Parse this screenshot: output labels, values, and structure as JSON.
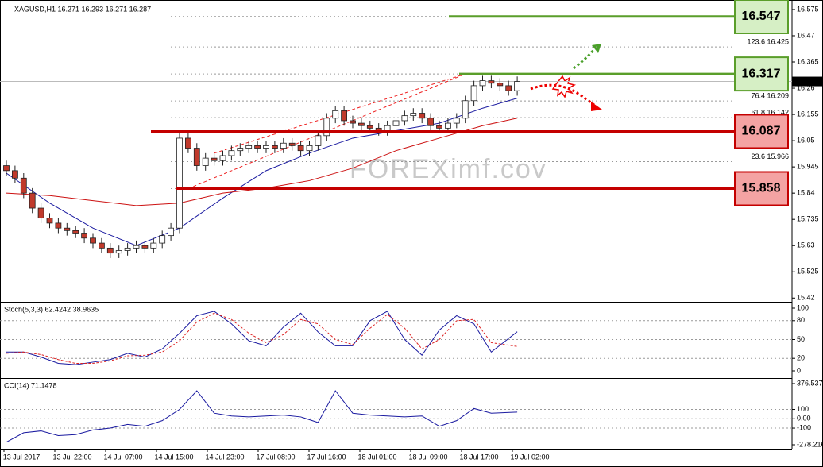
{
  "chart_data": {
    "type": "candlestick",
    "header": "XAGUSD,H1  16.271 16.293 16.271 16.287",
    "watermark": "FOREXimf.cov",
    "ylim": [
      15.405,
      16.613
    ],
    "yticks": [
      16.575,
      16.47,
      16.365,
      16.26,
      16.155,
      16.05,
      15.945,
      15.84,
      15.735,
      15.63,
      15.525,
      15.42
    ],
    "current_price": 16.287,
    "open": [
      15.95,
      15.93,
      15.9,
      15.84,
      15.78,
      15.74,
      15.72,
      15.7,
      15.69,
      15.68,
      15.66,
      15.64,
      15.62,
      15.6,
      15.61,
      15.62,
      15.63,
      15.62,
      15.64,
      15.67,
      15.7,
      16.06,
      16.02,
      15.95,
      15.98,
      15.97,
      15.99,
      16.01,
      16.02,
      16.03,
      16.02,
      16.03,
      16.02,
      16.04,
      16.03,
      16.01,
      16.03,
      16.07,
      16.14,
      16.17,
      16.13,
      16.12,
      16.11,
      16.1,
      16.09,
      16.11,
      16.13,
      16.15,
      16.16,
      16.14,
      16.11,
      16.1,
      16.12,
      16.14,
      16.21,
      16.27,
      16.29,
      16.28,
      16.27,
      16.25
    ],
    "high": [
      15.97,
      15.95,
      15.92,
      15.86,
      15.8,
      15.76,
      15.74,
      15.72,
      15.71,
      15.7,
      15.68,
      15.66,
      15.64,
      15.63,
      15.64,
      15.65,
      15.65,
      15.66,
      15.69,
      15.72,
      16.08,
      16.08,
      16.04,
      16,
      16,
      16.01,
      16.03,
      16.04,
      16.05,
      16.05,
      16.05,
      16.05,
      16.06,
      16.06,
      16.05,
      16.05,
      16.09,
      16.16,
      16.19,
      16.19,
      16.15,
      16.14,
      16.13,
      16.12,
      16.13,
      16.15,
      16.17,
      16.18,
      16.18,
      16.16,
      16.13,
      16.14,
      16.16,
      16.23,
      16.29,
      16.31,
      16.31,
      16.3,
      16.29,
      16.307
    ],
    "low": [
      15.91,
      15.88,
      15.82,
      15.76,
      15.72,
      15.7,
      15.68,
      15.67,
      15.66,
      15.64,
      15.62,
      15.6,
      15.58,
      15.58,
      15.59,
      15.6,
      15.6,
      15.6,
      15.62,
      15.65,
      15.68,
      16,
      15.93,
      15.93,
      15.95,
      15.95,
      15.97,
      15.99,
      16,
      16,
      16,
      16,
      16,
      16.01,
      15.99,
      15.99,
      16.01,
      16.05,
      16.12,
      16.11,
      16.1,
      16.09,
      16.08,
      16.07,
      16.07,
      16.09,
      16.11,
      16.13,
      16.12,
      16.09,
      16.08,
      16.08,
      16.1,
      16.12,
      16.19,
      16.25,
      16.26,
      16.25,
      16.23,
      16.23
    ],
    "close": [
      15.93,
      15.9,
      15.84,
      15.78,
      15.74,
      15.72,
      15.7,
      15.69,
      15.68,
      15.66,
      15.64,
      15.62,
      15.6,
      15.61,
      15.62,
      15.63,
      15.62,
      15.64,
      15.67,
      15.7,
      16.06,
      16.02,
      15.95,
      15.98,
      15.97,
      15.99,
      16.01,
      16.02,
      16.03,
      16.02,
      16.03,
      16.02,
      16.04,
      16.03,
      16.01,
      16.03,
      16.07,
      16.14,
      16.17,
      16.13,
      16.12,
      16.11,
      16.1,
      16.09,
      16.11,
      16.13,
      16.15,
      16.16,
      16.14,
      16.11,
      16.1,
      16.12,
      16.14,
      16.21,
      16.27,
      16.29,
      16.28,
      16.27,
      16.25,
      16.287
    ],
    "moving_averages": [
      {
        "color": "#1a1aa0",
        "x": [
          0,
          5,
          10,
          15,
          20,
          25,
          30,
          35,
          40,
          45,
          50,
          55,
          59
        ],
        "values": [
          15.92,
          15.8,
          15.7,
          15.63,
          15.7,
          15.82,
          15.93,
          16,
          16.06,
          16.09,
          16.12,
          16.18,
          16.22
        ]
      },
      {
        "color": "#cc1111",
        "x": [
          0,
          5,
          10,
          15,
          20,
          25,
          30,
          35,
          40,
          45,
          50,
          55,
          59
        ],
        "values": [
          15.84,
          15.83,
          15.81,
          15.79,
          15.8,
          15.84,
          15.86,
          15.89,
          15.94,
          16.01,
          16.06,
          16.11,
          16.14
        ]
      }
    ],
    "channel": [
      {
        "x": [
          21,
          53
        ],
        "values": [
          15.858,
          16.317
        ]
      },
      {
        "x": [
          24,
          53
        ],
        "values": [
          16.0,
          16.317
        ]
      }
    ],
    "fib_levels": [
      16.547,
      {
        "value": 16.425,
        "label": "123.6  16.425"
      },
      16.317,
      {
        "value": 16.209,
        "label": "76.4  16.209"
      },
      {
        "value": 16.142,
        "label": "61.8  16.142"
      },
      {
        "value": 15.966,
        "label": "23.6  15.966"
      },
      15.858
    ],
    "levels": [
      {
        "value": 16.547,
        "color": "#5a9e2a",
        "fill": "#d6efc5"
      },
      {
        "value": 16.317,
        "color": "#5a9e2a",
        "fill": "#d6efc5"
      },
      {
        "value": 16.087,
        "color": "#c40000",
        "fill": "#f4a3a3"
      },
      {
        "value": 15.858,
        "color": "#c40000",
        "fill": "#f4a3a3"
      }
    ],
    "time_labels": [
      "13 Jul 2017",
      "13 Jul 22:00",
      "14 Jul 07:00",
      "14 Jul 15:00",
      "14 Jul 23:00",
      "17 Jul 08:00",
      "17 Jul 16:00",
      "18 Jul 01:00",
      "18 Jul 09:00",
      "18 Jul 17:00",
      "19 Jul 02:00"
    ],
    "stoch": {
      "title": "Stoch(5,3,3) 62.4242 38.9635",
      "ylim": [
        0,
        100
      ],
      "yticks": [
        100,
        80,
        50,
        20,
        0
      ],
      "levels": [
        80,
        50,
        20
      ],
      "x": [
        0,
        2,
        4,
        6,
        8,
        10,
        12,
        14,
        16,
        18,
        20,
        22,
        24,
        26,
        28,
        30,
        32,
        34,
        36,
        38,
        40,
        42,
        44,
        46,
        48,
        50,
        52,
        54,
        56,
        59
      ],
      "series": [
        {
          "color": "#1a1aa0",
          "values": [
            30,
            30,
            22,
            12,
            10,
            14,
            18,
            28,
            22,
            35,
            60,
            88,
            95,
            75,
            48,
            40,
            70,
            92,
            62,
            40,
            40,
            80,
            95,
            50,
            25,
            65,
            88,
            75,
            30,
            62.4242
          ]
        },
        {
          "color": "#dd2222",
          "values": [
            28,
            30,
            26,
            18,
            12,
            12,
            16,
            24,
            25,
            30,
            48,
            78,
            92,
            82,
            60,
            45,
            58,
            82,
            75,
            50,
            42,
            68,
            90,
            68,
            35,
            50,
            80,
            82,
            45,
            38.9635
          ]
        }
      ]
    },
    "cci": {
      "title": "CCI(14) 71.1478",
      "ylim": [
        -278.216,
        376.5373
      ],
      "yticks": [
        376.5373,
        100,
        {
          "value": 0,
          "label": "0.00"
        },
        -100,
        -278.216
      ],
      "levels": [
        100,
        0,
        -100
      ],
      "x": [
        0,
        2,
        4,
        6,
        8,
        10,
        12,
        14,
        16,
        18,
        20,
        22,
        24,
        26,
        28,
        30,
        32,
        34,
        36,
        38,
        40,
        42,
        44,
        46,
        48,
        50,
        52,
        54,
        56,
        59
      ],
      "color": "#1a1aa0",
      "values": [
        -250,
        -150,
        -130,
        -180,
        -170,
        -120,
        -100,
        -60,
        -80,
        -20,
        100,
        300,
        60,
        30,
        20,
        30,
        40,
        20,
        -40,
        300,
        60,
        40,
        30,
        20,
        30,
        -80,
        -20,
        110,
        60,
        71.1478
      ]
    }
  }
}
